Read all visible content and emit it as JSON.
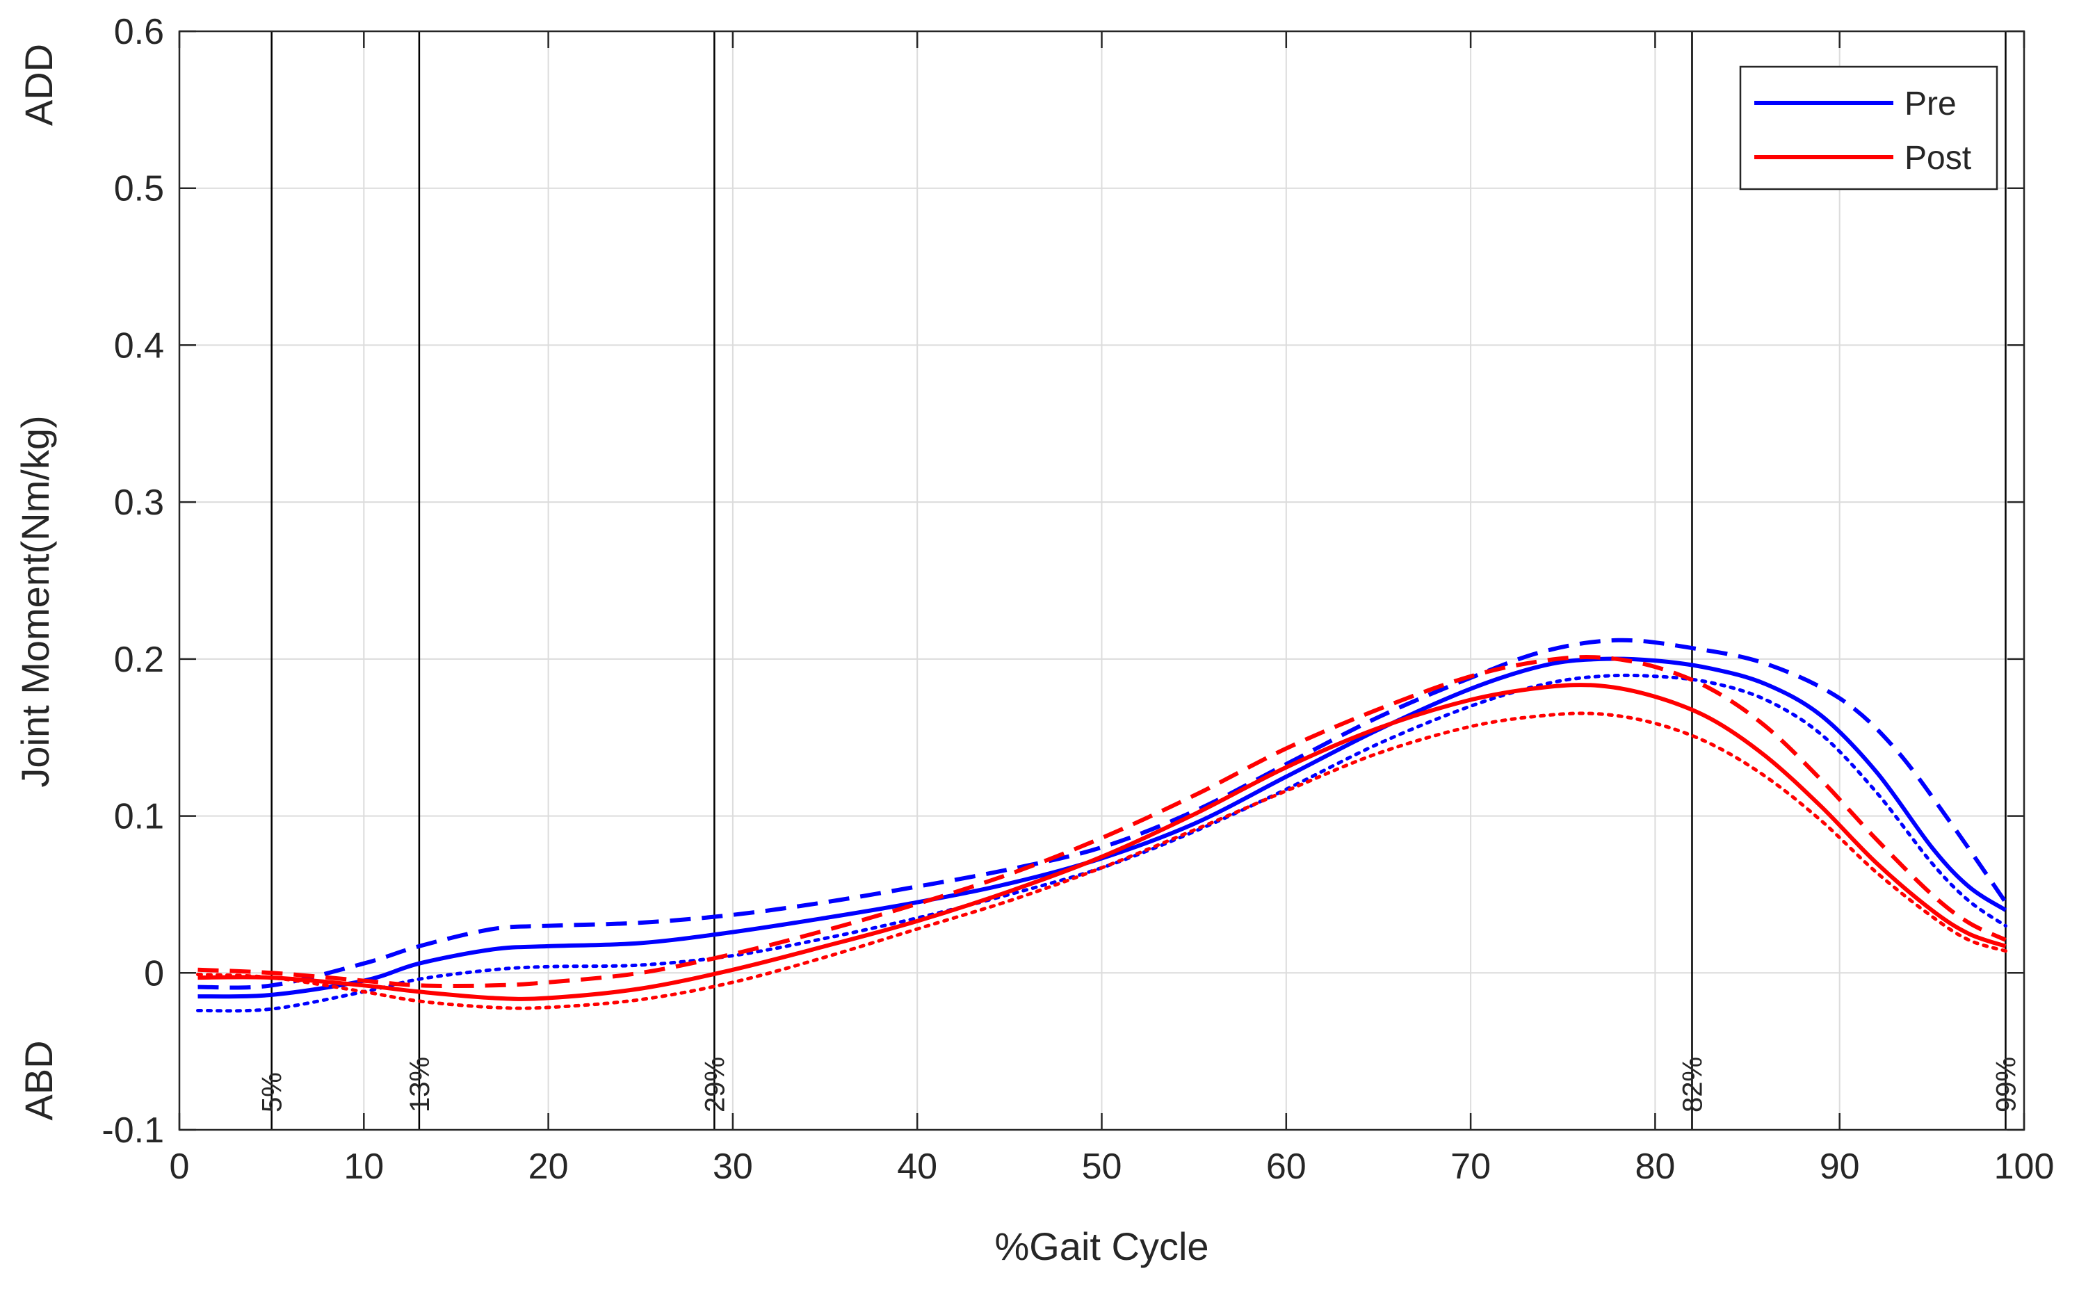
{
  "chart_data": {
    "type": "line",
    "title": "",
    "xlabel": "%Gait Cycle",
    "ylabel": "Joint Moment(Nm/kg)",
    "xlim": [
      0,
      100
    ],
    "ylim": [
      -0.1,
      0.6
    ],
    "xticks": [
      "0",
      "10",
      "20",
      "30",
      "40",
      "50",
      "60",
      "70",
      "80",
      "90",
      "100"
    ],
    "yticks": [
      "-0.1",
      "0",
      "0.1",
      "0.2",
      "0.3",
      "0.4",
      "0.5",
      "0.6"
    ],
    "grid": true,
    "legend_position": "top-right",
    "direction_labels": {
      "top": "ADD",
      "bottom": "ABD"
    },
    "events": [
      {
        "x": 5,
        "label": "5%"
      },
      {
        "x": 13,
        "label": "13%"
      },
      {
        "x": 29,
        "label": "29%"
      },
      {
        "x": 82,
        "label": "82%"
      },
      {
        "x": 99,
        "label": "99%"
      }
    ],
    "legend": [
      {
        "name": "Pre",
        "color": "#0000ff"
      },
      {
        "name": "Post",
        "color": "#ff0000"
      }
    ],
    "series": [
      {
        "name": "Pre",
        "style": "solid",
        "color": "#0000ff",
        "in_legend": true,
        "x": [
          1,
          5,
          10,
          13,
          17,
          20,
          25,
          30,
          35,
          40,
          45,
          50,
          55,
          60,
          65,
          70,
          74,
          77,
          80,
          83,
          86,
          89,
          92,
          95,
          97,
          99
        ],
        "y": [
          -0.015,
          -0.014,
          -0.005,
          0.006,
          0.015,
          0.017,
          0.019,
          0.026,
          0.035,
          0.045,
          0.057,
          0.073,
          0.095,
          0.125,
          0.155,
          0.181,
          0.196,
          0.2,
          0.199,
          0.194,
          0.184,
          0.164,
          0.128,
          0.08,
          0.055,
          0.04
        ]
      },
      {
        "name": "Pre (dashed)",
        "style": "dashed",
        "color": "#0000ff",
        "in_legend": false,
        "x": [
          1,
          5,
          10,
          13,
          17,
          20,
          25,
          30,
          35,
          40,
          45,
          50,
          55,
          60,
          65,
          70,
          74,
          78,
          82,
          86,
          90,
          93,
          96,
          99
        ],
        "y": [
          -0.009,
          -0.008,
          0.006,
          0.017,
          0.028,
          0.03,
          0.032,
          0.037,
          0.045,
          0.055,
          0.066,
          0.08,
          0.103,
          0.133,
          0.163,
          0.188,
          0.205,
          0.212,
          0.207,
          0.197,
          0.175,
          0.143,
          0.096,
          0.045
        ]
      },
      {
        "name": "Pre (dotted)",
        "style": "dotted",
        "color": "#0000ff",
        "in_legend": false,
        "x": [
          1,
          5,
          10,
          13,
          17,
          20,
          25,
          30,
          35,
          40,
          45,
          50,
          55,
          60,
          65,
          70,
          74,
          77,
          80,
          83,
          86,
          89,
          92,
          95,
          97,
          99
        ],
        "y": [
          -0.024,
          -0.023,
          -0.012,
          -0.004,
          0.002,
          0.004,
          0.005,
          0.011,
          0.022,
          0.035,
          0.05,
          0.067,
          0.09,
          0.117,
          0.146,
          0.17,
          0.184,
          0.189,
          0.189,
          0.185,
          0.174,
          0.152,
          0.115,
          0.07,
          0.046,
          0.03
        ]
      },
      {
        "name": "Post",
        "style": "solid",
        "color": "#ff0000",
        "in_legend": true,
        "x": [
          1,
          5,
          10,
          13,
          17,
          20,
          25,
          30,
          35,
          40,
          45,
          50,
          55,
          60,
          65,
          70,
          74,
          77,
          80,
          83,
          86,
          89,
          92,
          95,
          97,
          99
        ],
        "y": [
          -0.003,
          -0.003,
          -0.008,
          -0.012,
          -0.016,
          -0.016,
          -0.01,
          0.002,
          0.017,
          0.033,
          0.052,
          0.074,
          0.101,
          0.131,
          0.156,
          0.174,
          0.182,
          0.183,
          0.176,
          0.162,
          0.138,
          0.106,
          0.07,
          0.04,
          0.025,
          0.017
        ]
      },
      {
        "name": "Post (dashed)",
        "style": "dashed",
        "color": "#ff0000",
        "in_legend": false,
        "x": [
          1,
          5,
          10,
          13,
          17,
          20,
          25,
          30,
          35,
          40,
          45,
          50,
          55,
          60,
          65,
          70,
          74,
          77,
          80,
          83,
          86,
          89,
          92,
          95,
          97,
          99
        ],
        "y": [
          0.002,
          0.0,
          -0.005,
          -0.008,
          -0.008,
          -0.006,
          0.0,
          0.012,
          0.027,
          0.044,
          0.063,
          0.086,
          0.113,
          0.143,
          0.168,
          0.189,
          0.199,
          0.201,
          0.195,
          0.181,
          0.157,
          0.123,
          0.085,
          0.05,
          0.032,
          0.021
        ]
      },
      {
        "name": "Post (dotted)",
        "style": "dotted",
        "color": "#ff0000",
        "in_legend": false,
        "x": [
          1,
          5,
          10,
          13,
          17,
          20,
          25,
          30,
          35,
          40,
          45,
          50,
          55,
          60,
          65,
          70,
          74,
          77,
          80,
          83,
          86,
          89,
          92,
          95,
          97,
          99
        ],
        "y": [
          -0.001,
          -0.003,
          -0.012,
          -0.018,
          -0.022,
          -0.022,
          -0.017,
          -0.006,
          0.01,
          0.028,
          0.046,
          0.067,
          0.091,
          0.116,
          0.14,
          0.157,
          0.164,
          0.165,
          0.159,
          0.146,
          0.125,
          0.097,
          0.064,
          0.036,
          0.021,
          0.014
        ]
      }
    ]
  }
}
